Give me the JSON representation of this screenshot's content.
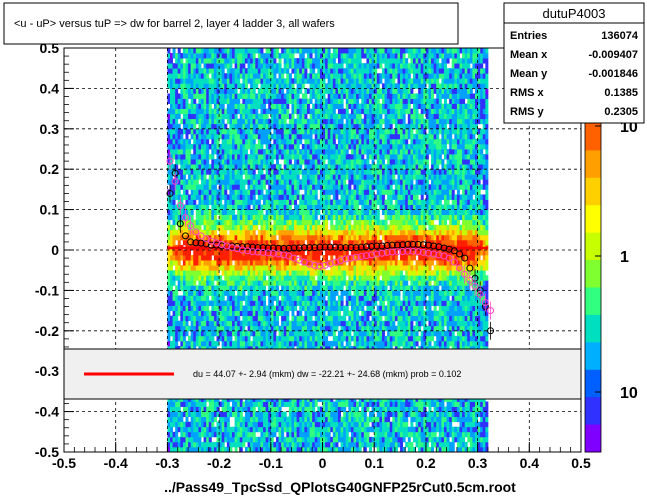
{
  "chart_data": {
    "type": "scatter",
    "title": "<u - uP>     versus  tuP =>  dw for barrel 2, layer 4 ladder 3, all wafers",
    "xlabel": "../Pass49_TpcSsd_QPlotsG40GNFP25rCut0.5cm.root",
    "ylabel": "",
    "xlim": [
      -0.5,
      0.5
    ],
    "ylim": [
      -0.5,
      0.5
    ],
    "x_ticks": [
      -0.5,
      -0.4,
      -0.3,
      -0.2,
      -0.1,
      0,
      0.1,
      0.2,
      0.3,
      0.4,
      0.5
    ],
    "x_tick_labels": [
      "-0.5",
      "-0.4",
      "-0.3",
      "-0.2",
      "-0.1",
      "0",
      "0.1",
      "0.2",
      "0.3",
      "0.4",
      "0.5"
    ],
    "y_ticks": [
      -0.5,
      -0.4,
      -0.3,
      -0.2,
      -0.1,
      0,
      0.1,
      0.2,
      0.3,
      0.4,
      0.5
    ],
    "y_tick_labels": [
      "-0.5",
      "-0.4",
      "-0.3",
      "-0.2",
      "-0.1",
      "0",
      "0.1",
      "0.2",
      "0.3",
      "0.4",
      "0.5"
    ],
    "grid": true,
    "density": {
      "x_range": [
        -0.3,
        0.32
      ],
      "core_halfwidth": 0.04,
      "colors": [
        "#8000ff",
        "#3030ff",
        "#00a0ff",
        "#00e0c0",
        "#30ff80",
        "#80ff30",
        "#c8ff00",
        "#ffe000",
        "#ffa000",
        "#ff6000",
        "#ff2000"
      ]
    },
    "series": [
      {
        "marker": "black-open-circle",
        "color": "#000000",
        "x": [
          -0.295,
          -0.285,
          -0.275,
          -0.265,
          -0.255,
          -0.245,
          -0.235,
          -0.225,
          -0.215,
          -0.205,
          -0.195,
          -0.185,
          -0.175,
          -0.165,
          -0.155,
          -0.145,
          -0.135,
          -0.125,
          -0.115,
          -0.105,
          -0.095,
          -0.085,
          -0.075,
          -0.065,
          -0.055,
          -0.045,
          -0.035,
          -0.025,
          -0.015,
          -0.005,
          0.005,
          0.015,
          0.025,
          0.035,
          0.045,
          0.055,
          0.065,
          0.075,
          0.085,
          0.095,
          0.105,
          0.115,
          0.125,
          0.135,
          0.145,
          0.155,
          0.165,
          0.175,
          0.185,
          0.195,
          0.205,
          0.215,
          0.225,
          0.235,
          0.245,
          0.255,
          0.265,
          0.275,
          0.285,
          0.295,
          0.305,
          0.315,
          0.325
        ],
        "y": [
          0.14,
          0.19,
          0.065,
          0.035,
          0.02,
          0.018,
          0.017,
          0.015,
          0.012,
          0.012,
          0.01,
          0.01,
          0.01,
          0.009,
          0.008,
          0.008,
          0.007,
          0.006,
          0.006,
          0.005,
          0.005,
          0.004,
          0.004,
          0.004,
          0.005,
          0.005,
          0.006,
          0.006,
          0.006,
          0.007,
          0.007,
          0.007,
          0.007,
          0.006,
          0.006,
          0.006,
          0.006,
          0.007,
          0.008,
          0.009,
          0.01,
          0.01,
          0.011,
          0.012,
          0.012,
          0.013,
          0.014,
          0.014,
          0.014,
          0.013,
          0.012,
          0.01,
          0.008,
          0.005,
          0.002,
          -0.002,
          -0.01,
          -0.02,
          -0.045,
          -0.07,
          -0.1,
          -0.14,
          -0.2
        ]
      },
      {
        "marker": "magenta-open-circle",
        "color": "#ff44cc",
        "x": [
          -0.295,
          -0.285,
          -0.275,
          -0.265,
          -0.255,
          -0.245,
          -0.235,
          -0.225,
          -0.215,
          -0.205,
          -0.195,
          -0.185,
          -0.175,
          -0.165,
          -0.155,
          -0.145,
          -0.135,
          -0.125,
          -0.115,
          -0.105,
          -0.095,
          -0.085,
          -0.075,
          -0.065,
          -0.055,
          -0.045,
          -0.035,
          -0.025,
          -0.015,
          -0.005,
          0.005,
          0.015,
          0.025,
          0.035,
          0.045,
          0.055,
          0.065,
          0.075,
          0.085,
          0.095,
          0.105,
          0.115,
          0.125,
          0.135,
          0.145,
          0.155,
          0.165,
          0.175,
          0.185,
          0.195,
          0.205,
          0.215,
          0.225,
          0.235,
          0.245,
          0.255,
          0.265,
          0.275,
          0.285,
          0.295,
          0.305,
          0.315,
          0.325
        ],
        "y": [
          0.22,
          0.17,
          0.11,
          0.08,
          0.06,
          0.045,
          0.035,
          0.028,
          0.022,
          0.018,
          0.014,
          0.01,
          0.006,
          0.003,
          0.0,
          -0.002,
          -0.004,
          -0.005,
          -0.006,
          -0.007,
          -0.008,
          -0.01,
          -0.012,
          -0.015,
          -0.02,
          -0.025,
          -0.03,
          -0.035,
          -0.038,
          -0.04,
          -0.038,
          -0.034,
          -0.03,
          -0.026,
          -0.022,
          -0.02,
          -0.018,
          -0.016,
          -0.014,
          -0.012,
          -0.01,
          -0.008,
          -0.006,
          -0.005,
          -0.004,
          -0.004,
          -0.003,
          -0.003,
          -0.004,
          -0.006,
          -0.008,
          -0.01,
          -0.012,
          -0.015,
          -0.02,
          -0.03,
          -0.045,
          -0.06,
          -0.075,
          -0.09,
          -0.11,
          -0.13,
          -0.15
        ]
      }
    ],
    "fit_line": {
      "x": [
        -0.3,
        0.32
      ],
      "y": [
        0.005,
        0.005
      ],
      "color": "#ff0000"
    },
    "stats_box": {
      "title": "dutuP4003",
      "rows": [
        {
          "label": "Entries",
          "value": "136074"
        },
        {
          "label": "Mean x",
          "value": "-0.009407"
        },
        {
          "label": "Mean y",
          "value": "-0.001846"
        },
        {
          "label": "RMS x",
          "value": "0.1385"
        },
        {
          "label": "RMS y",
          "value": "0.2305"
        }
      ]
    },
    "legend": {
      "placement": "lower-middle",
      "text": "du =   44.07 +-  2.94 (mkm) dw =  -22.21 +- 24.68 (mkm) prob = 0.102",
      "line_color": "#ff0000"
    },
    "colorbar": {
      "scale": "log",
      "labels": [
        "10",
        "1",
        "10"
      ],
      "colors": [
        "#ff6000",
        "#ffa000",
        "#ffd000",
        "#ffff00",
        "#c8ff00",
        "#80ff30",
        "#30ff80",
        "#00e0c0",
        "#00b0ff",
        "#0060ff",
        "#3030ff",
        "#8000ff"
      ]
    }
  }
}
